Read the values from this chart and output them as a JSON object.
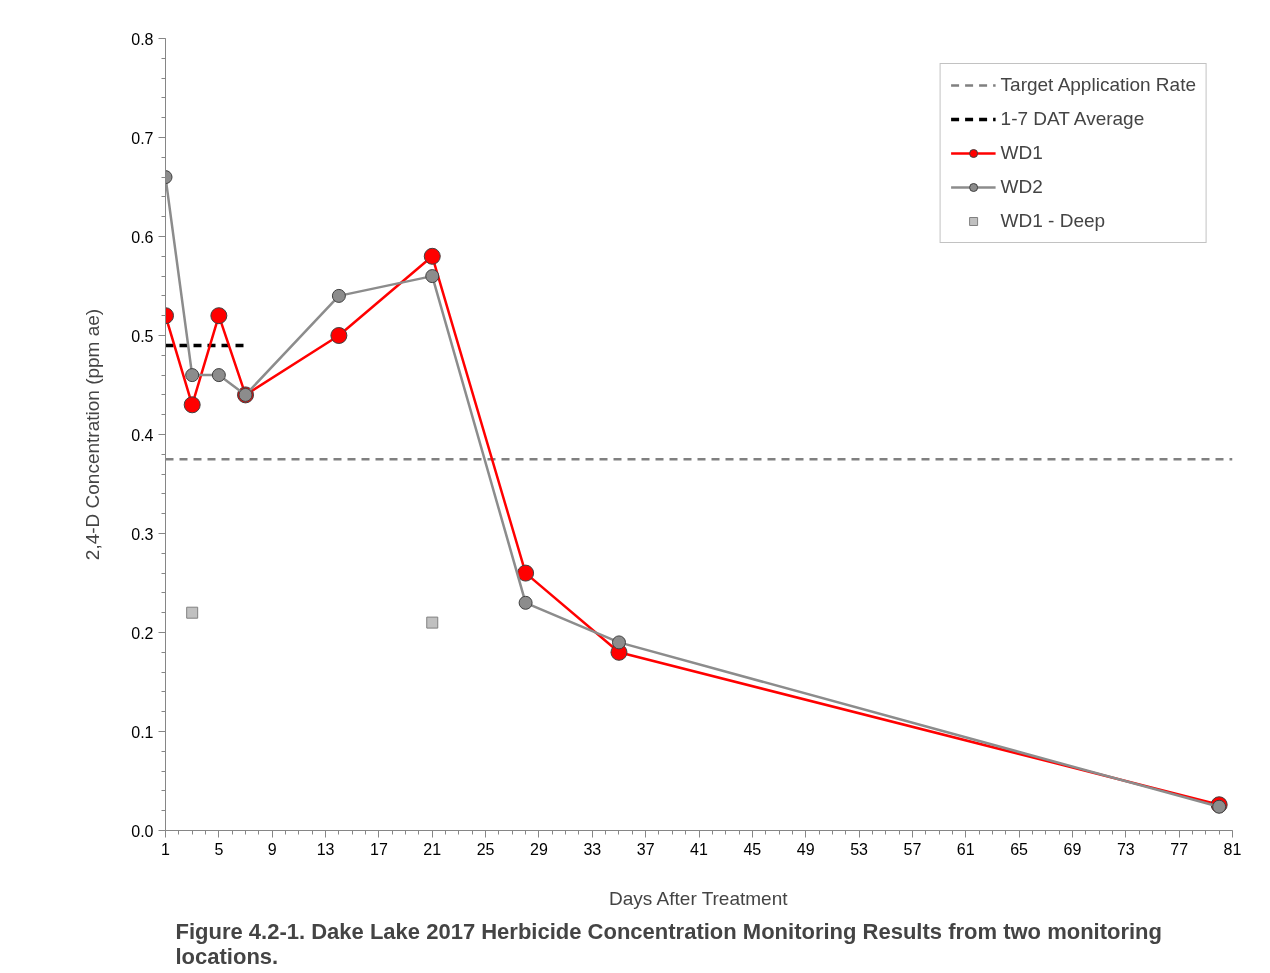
{
  "chart_data": {
    "type": "line",
    "title": "Figure 4.2-1.  Dake Lake 2017 Herbicide Concentration Monitoring Results from two monitoring locations.",
    "xlabel": "Days After Treatment",
    "ylabel": "2,4-D Concentration (ppm ae)",
    "xlim": [
      1,
      81
    ],
    "xticks": [
      1,
      5,
      9,
      13,
      17,
      21,
      25,
      29,
      33,
      37,
      41,
      45,
      49,
      53,
      57,
      61,
      65,
      69,
      73,
      77,
      81
    ],
    "ylim": [
      0,
      0.8
    ],
    "yticks": [
      {
        "value": 0,
        "label": "0.0"
      },
      0.1,
      0.2,
      0.3,
      0.4,
      0.5,
      0.6,
      0.7,
      0.8
    ],
    "grid": false,
    "legend": "top right",
    "series": [
      {
        "name": "Target Application Rate",
        "type": "line",
        "color": "#808080",
        "line_style": "dashed",
        "marker": "none",
        "x": [
          1,
          81
        ],
        "values": [
          0.375,
          0.375
        ]
      },
      {
        "name": "1-7 DAT Average",
        "type": "line",
        "color": "#000000",
        "line_style": "dashed",
        "marker": "none",
        "x": [
          1,
          7
        ],
        "values": [
          0.49,
          0.49
        ]
      },
      {
        "name": "WD1",
        "color": "#ff0000",
        "line_style": "solid",
        "marker": "circle",
        "x": [
          1,
          3,
          5,
          7,
          14,
          21,
          28,
          35,
          80
        ],
        "values": [
          0.52,
          0.43,
          0.52,
          0.44,
          0.5,
          0.58,
          0.26,
          0.18,
          0.026
        ]
      },
      {
        "name": "WD2",
        "color": "#8c8c8c",
        "line_style": "solid",
        "marker": "circle",
        "x": [
          1,
          3,
          5,
          7,
          14,
          21,
          28,
          35,
          80
        ],
        "values": [
          0.66,
          0.46,
          0.46,
          0.44,
          0.54,
          0.56,
          0.23,
          0.19,
          0.024
        ]
      },
      {
        "name": "WD1 - Deep",
        "type": "scatter",
        "color": "#c0c0c0",
        "marker": "square",
        "x": [
          3,
          21
        ],
        "values": [
          0.22,
          0.21
        ]
      }
    ]
  }
}
